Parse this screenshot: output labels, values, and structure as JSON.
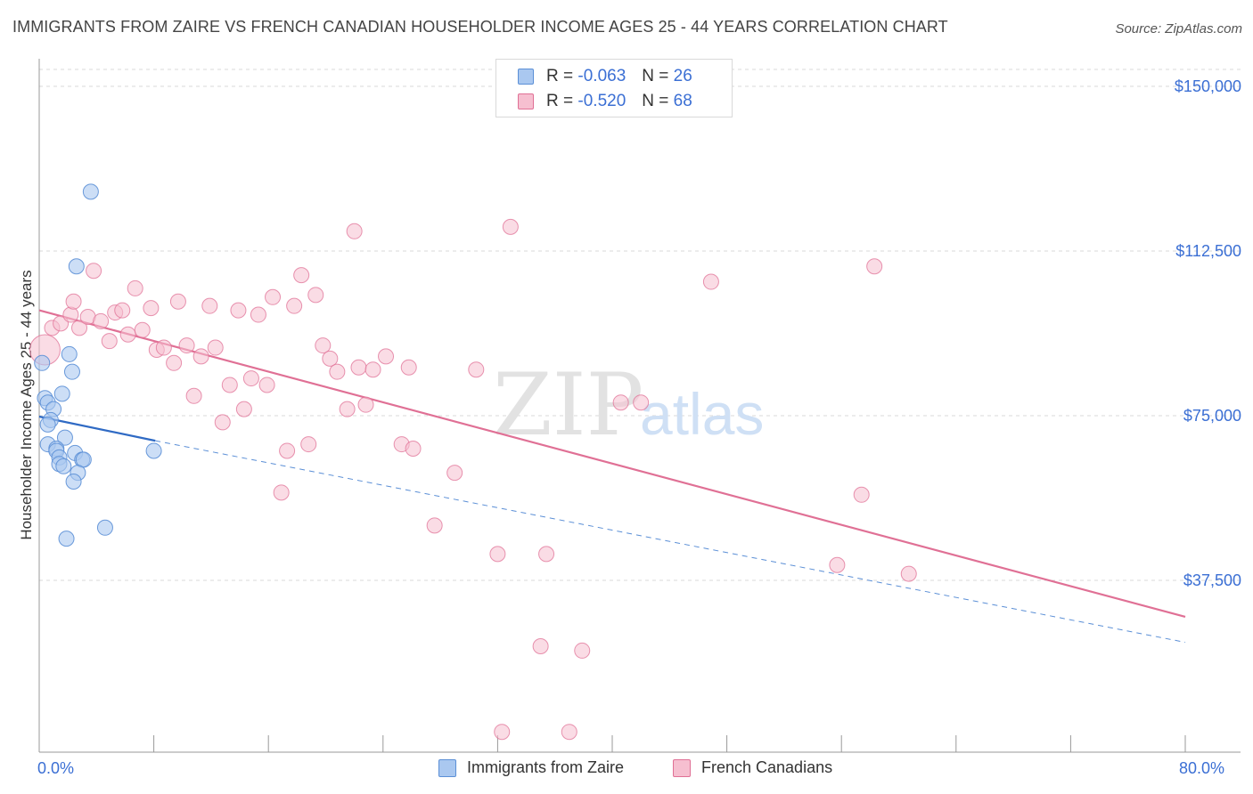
{
  "title": "IMMIGRANTS FROM ZAIRE VS FRENCH CANADIAN HOUSEHOLDER INCOME AGES 25 - 44 YEARS CORRELATION CHART",
  "source": "Source: ZipAtlas.com",
  "colors": {
    "blue": "#5b8fd6",
    "blue_fill": "#aac8f0",
    "pink": "#e07095",
    "pink_fill": "#f6bfd0",
    "axis_text": "#3b6fd4",
    "grid": "#d8d8d8"
  },
  "legend": {
    "rows": [
      {
        "r_label": "R =",
        "r_value": "-0.063",
        "n_label": "N =",
        "n_value": "26"
      },
      {
        "r_label": "R =",
        "r_value": "-0.520",
        "n_label": "N =",
        "n_value": "68"
      }
    ]
  },
  "bottom_legend": {
    "series1": "Immigrants from Zaire",
    "series2": "French Canadians"
  },
  "watermark": {
    "zip": "ZIP",
    "atlas": "atlas"
  },
  "chart_data": {
    "type": "scatter",
    "title": "IMMIGRANTS FROM ZAIRE VS FRENCH CANADIAN HOUSEHOLDER INCOME AGES 25 - 44 YEARS CORRELATION CHART",
    "xlabel": "",
    "ylabel": "Householder Income Ages 25 - 44 years",
    "xlim": [
      0,
      80
    ],
    "ylim": [
      0,
      152000
    ],
    "x_tick_labels": [
      "0.0%",
      "80.0%"
    ],
    "y_ticks": [
      37500,
      75000,
      112500,
      150000
    ],
    "y_tick_labels": [
      "$37,500",
      "$75,000",
      "$112,500",
      "$150,000"
    ],
    "grid": true,
    "series": [
      {
        "name": "Immigrants from Zaire",
        "R": -0.063,
        "N": 26,
        "trend_solid": {
          "x": [
            0,
            8.1
          ],
          "y": [
            74800,
            69300
          ]
        },
        "trend_dashed": {
          "x": [
            8.1,
            80
          ],
          "y": [
            69300,
            23400
          ]
        },
        "points": [
          {
            "x": 3.6,
            "y": 126000
          },
          {
            "x": 2.6,
            "y": 109000
          },
          {
            "x": 0.2,
            "y": 87000
          },
          {
            "x": 2.1,
            "y": 89000
          },
          {
            "x": 2.3,
            "y": 85000
          },
          {
            "x": 1.6,
            "y": 80000
          },
          {
            "x": 0.4,
            "y": 79000
          },
          {
            "x": 0.6,
            "y": 78000
          },
          {
            "x": 1.0,
            "y": 76500
          },
          {
            "x": 0.8,
            "y": 74000
          },
          {
            "x": 0.6,
            "y": 73000
          },
          {
            "x": 1.8,
            "y": 70000
          },
          {
            "x": 0.6,
            "y": 68500
          },
          {
            "x": 1.2,
            "y": 67500
          },
          {
            "x": 1.2,
            "y": 67000
          },
          {
            "x": 2.5,
            "y": 66500
          },
          {
            "x": 1.4,
            "y": 65500
          },
          {
            "x": 3.0,
            "y": 65000
          },
          {
            "x": 3.1,
            "y": 65000
          },
          {
            "x": 1.4,
            "y": 64000
          },
          {
            "x": 1.7,
            "y": 63500
          },
          {
            "x": 2.7,
            "y": 62000
          },
          {
            "x": 2.4,
            "y": 60000
          },
          {
            "x": 8.0,
            "y": 67000
          },
          {
            "x": 4.6,
            "y": 49500
          },
          {
            "x": 1.9,
            "y": 47000
          }
        ]
      },
      {
        "name": "French Canadians",
        "R": -0.52,
        "N": 68,
        "trend": {
          "x": [
            0,
            80
          ],
          "y": [
            99000,
            29200
          ]
        },
        "points": [
          {
            "x": 0.4,
            "y": 90000,
            "big": true
          },
          {
            "x": 0.9,
            "y": 95000
          },
          {
            "x": 1.5,
            "y": 96000
          },
          {
            "x": 2.2,
            "y": 98000
          },
          {
            "x": 2.4,
            "y": 101000
          },
          {
            "x": 2.8,
            "y": 95000
          },
          {
            "x": 3.4,
            "y": 97500
          },
          {
            "x": 3.8,
            "y": 108000
          },
          {
            "x": 4.3,
            "y": 96500
          },
          {
            "x": 4.9,
            "y": 92000
          },
          {
            "x": 5.3,
            "y": 98500
          },
          {
            "x": 5.8,
            "y": 99000
          },
          {
            "x": 6.2,
            "y": 93500
          },
          {
            "x": 6.7,
            "y": 104000
          },
          {
            "x": 7.2,
            "y": 94500
          },
          {
            "x": 7.8,
            "y": 99500
          },
          {
            "x": 8.2,
            "y": 90000
          },
          {
            "x": 8.7,
            "y": 90500
          },
          {
            "x": 9.4,
            "y": 87000
          },
          {
            "x": 9.7,
            "y": 101000
          },
          {
            "x": 10.3,
            "y": 91000
          },
          {
            "x": 10.8,
            "y": 79500
          },
          {
            "x": 11.3,
            "y": 88500
          },
          {
            "x": 11.9,
            "y": 100000
          },
          {
            "x": 12.3,
            "y": 90500
          },
          {
            "x": 12.8,
            "y": 73500
          },
          {
            "x": 13.3,
            "y": 82000
          },
          {
            "x": 13.9,
            "y": 99000
          },
          {
            "x": 14.3,
            "y": 76500
          },
          {
            "x": 14.8,
            "y": 83500
          },
          {
            "x": 15.3,
            "y": 98000
          },
          {
            "x": 15.9,
            "y": 82000
          },
          {
            "x": 16.3,
            "y": 102000
          },
          {
            "x": 16.9,
            "y": 57500
          },
          {
            "x": 17.3,
            "y": 67000
          },
          {
            "x": 17.8,
            "y": 100000
          },
          {
            "x": 18.3,
            "y": 107000
          },
          {
            "x": 18.8,
            "y": 68500
          },
          {
            "x": 19.3,
            "y": 102500
          },
          {
            "x": 19.8,
            "y": 91000
          },
          {
            "x": 20.3,
            "y": 88000
          },
          {
            "x": 20.8,
            "y": 85000
          },
          {
            "x": 21.5,
            "y": 76500
          },
          {
            "x": 22.0,
            "y": 117000
          },
          {
            "x": 22.3,
            "y": 86000
          },
          {
            "x": 22.8,
            "y": 77500
          },
          {
            "x": 23.3,
            "y": 85500
          },
          {
            "x": 24.2,
            "y": 88500
          },
          {
            "x": 25.3,
            "y": 68500
          },
          {
            "x": 25.8,
            "y": 86000
          },
          {
            "x": 26.1,
            "y": 67500
          },
          {
            "x": 27.6,
            "y": 50000
          },
          {
            "x": 29.0,
            "y": 62000
          },
          {
            "x": 30.5,
            "y": 85500
          },
          {
            "x": 32.0,
            "y": 43500
          },
          {
            "x": 32.3,
            "y": 3000
          },
          {
            "x": 32.9,
            "y": 118000
          },
          {
            "x": 35.0,
            "y": 22500
          },
          {
            "x": 35.4,
            "y": 43500
          },
          {
            "x": 37.0,
            "y": 3000
          },
          {
            "x": 37.9,
            "y": 21500
          },
          {
            "x": 40.6,
            "y": 78000
          },
          {
            "x": 42.0,
            "y": 78000
          },
          {
            "x": 46.9,
            "y": 105500
          },
          {
            "x": 55.7,
            "y": 41000
          },
          {
            "x": 57.4,
            "y": 57000
          },
          {
            "x": 58.3,
            "y": 109000
          },
          {
            "x": 60.7,
            "y": 39000
          }
        ]
      }
    ]
  }
}
